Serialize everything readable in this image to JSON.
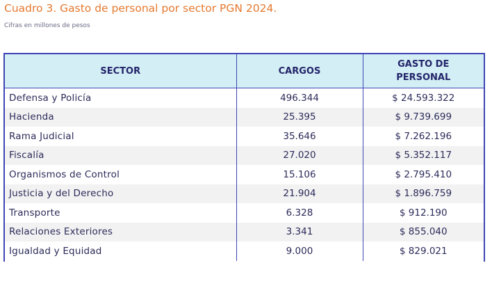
{
  "document": {
    "title": "Cuadro 3. Gasto de personal por sector PGN 2024.",
    "subtitle": "Cifras en millones de pesos"
  },
  "table": {
    "headers": {
      "sector": "SECTOR",
      "cargos": "CARGOS",
      "gasto_line1": "GASTO DE",
      "gasto_line2": "PERSONAL"
    },
    "rows": [
      {
        "sector": "Defensa y Policía",
        "cargos": "496.344",
        "gasto": "$ 24.593.322"
      },
      {
        "sector": "Hacienda",
        "cargos": "25.395",
        "gasto": "$ 9.739.699"
      },
      {
        "sector": "Rama Judicial",
        "cargos": "35.646",
        "gasto": "$ 7.262.196"
      },
      {
        "sector": "Fiscalía",
        "cargos": "27.020",
        "gasto": "$ 5.352.117"
      },
      {
        "sector": "Organismos de Control",
        "cargos": "15.106",
        "gasto": "$ 2.795.410"
      },
      {
        "sector": "Justicia y del Derecho",
        "cargos": "21.904",
        "gasto": "$ 1.896.759"
      },
      {
        "sector": "Transporte",
        "cargos": "6.328",
        "gasto": "$ 912.190"
      },
      {
        "sector": "Relaciones Exteriores",
        "cargos": "3.341",
        "gasto": "$ 855.040"
      },
      {
        "sector": "Igualdad y Equidad",
        "cargos": "9.000",
        "gasto": "$ 829.021"
      }
    ]
  },
  "colors": {
    "title": "#e5792f",
    "header_background": "#d3eef4",
    "header_text": "#23246a",
    "border": "#3d44b4",
    "row_stripe": "#f2f2f2"
  }
}
